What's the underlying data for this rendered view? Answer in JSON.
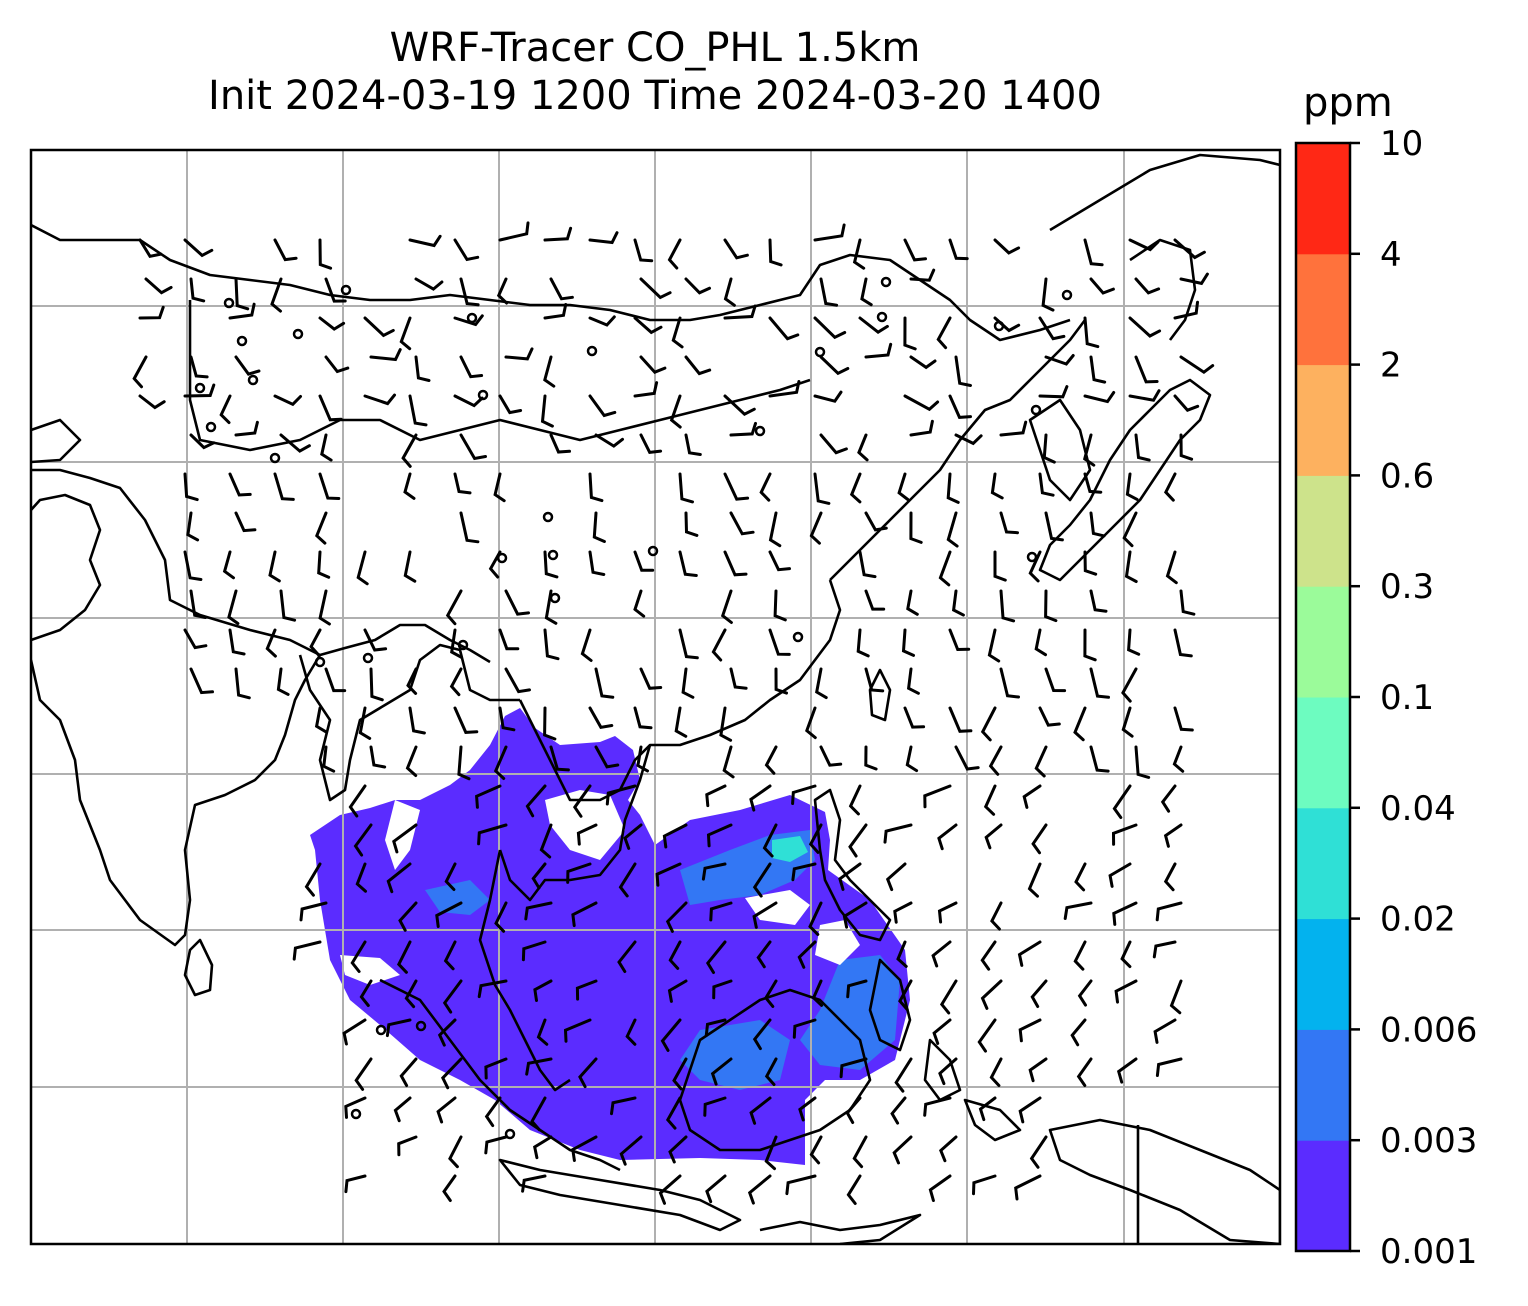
{
  "title": {
    "line1": "WRF-Tracer CO_PHL 1.5km",
    "line2": "Init 2024-03-19 1200 Time 2024-03-20 1400"
  },
  "colorbar": {
    "unit": "ppm",
    "levels": [
      "0.001",
      "0.003",
      "0.006",
      "0.02",
      "0.04",
      "0.1",
      "0.3",
      "0.6",
      "2",
      "4",
      "10"
    ],
    "colors": [
      "#5b2cff",
      "#3377f4",
      "#03b2ee",
      "#2fe0d6",
      "#6dfcc0",
      "#9bfb9a",
      "#cde38b",
      "#fdb15f",
      "#ff723c",
      "#ff2815"
    ]
  },
  "colors": {
    "coast": "#000000",
    "grid": "#b0b0b0",
    "plume_main": "#5b2cff",
    "plume_mid": "#3377f4",
    "plume_core": "#2fe0d6"
  }
}
